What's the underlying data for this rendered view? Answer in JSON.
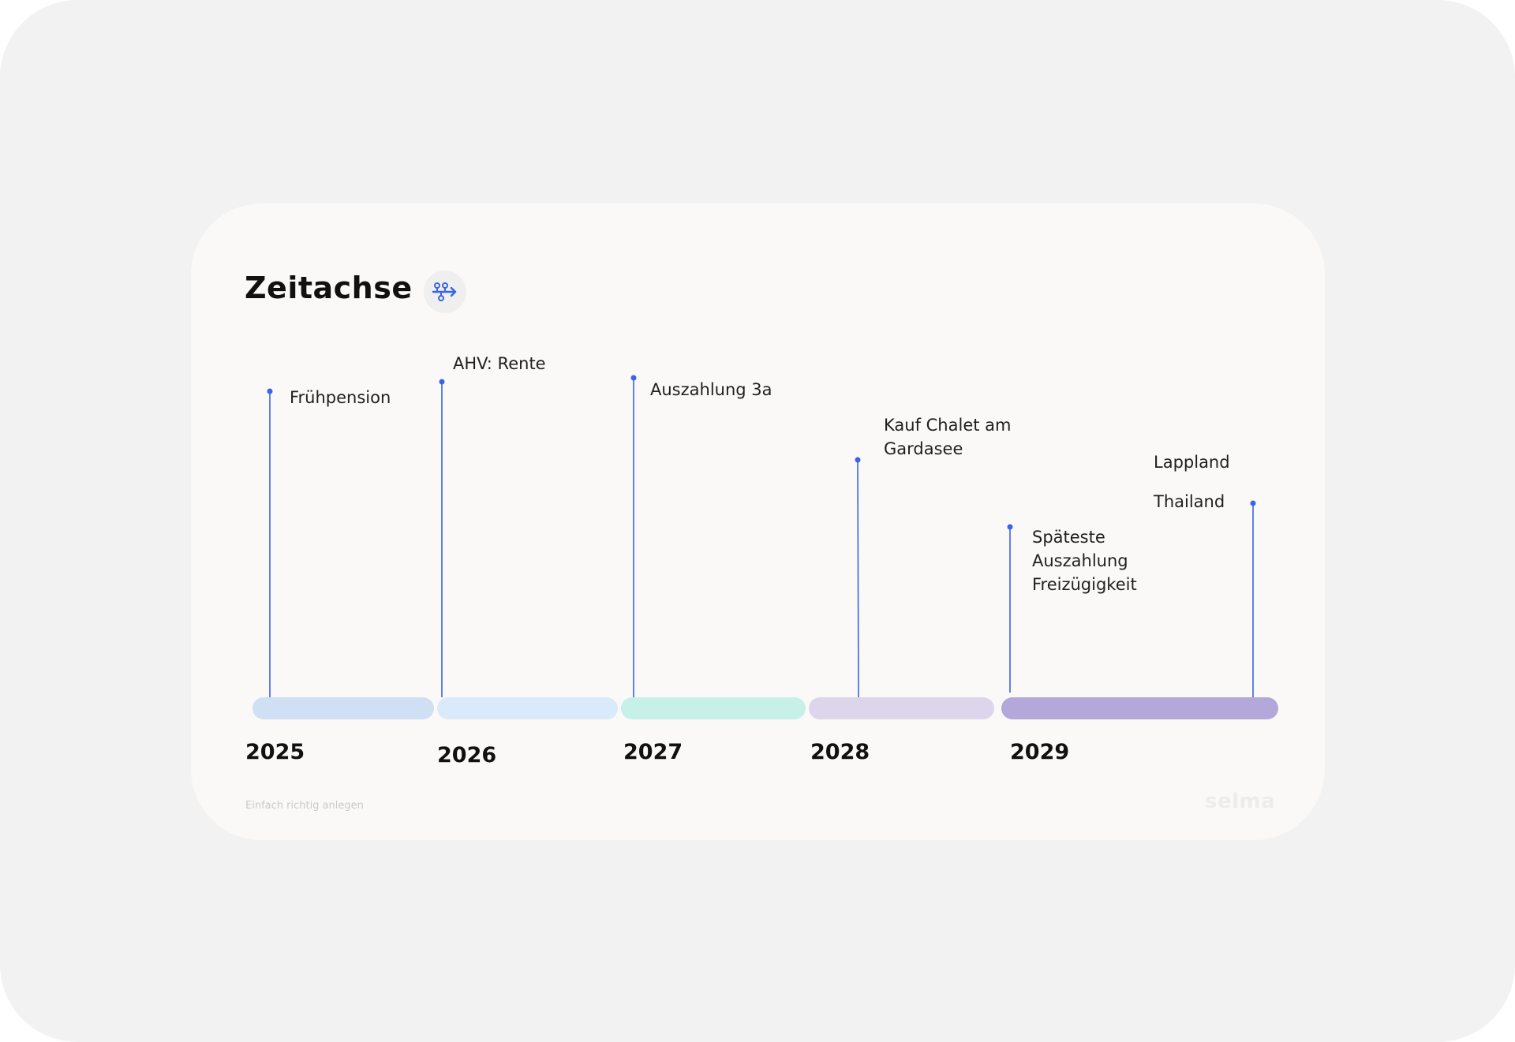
{
  "title": "Zeitachse",
  "title_icon": "flow-arrow-icon",
  "colors": {
    "frame_bg": "#f2f2f2",
    "card_bg": "#faf9f8",
    "marker": "#3b63e8",
    "bands": [
      "#cfe0f5",
      "#d9eafb",
      "#c7f0e9",
      "#ddd5ec",
      "#b3a8d9"
    ]
  },
  "years": [
    "2025",
    "2026",
    "2027",
    "2028",
    "2029"
  ],
  "events": [
    {
      "label": "Frühpension",
      "year": "2025"
    },
    {
      "label": "AHV: Rente",
      "year": "2026"
    },
    {
      "label": "Auszahlung 3a",
      "year": "2027"
    },
    {
      "label": "Kauf Chalet am\nGardasee",
      "year": "2028"
    },
    {
      "label": "Späteste\nAuszahlung\nFreizügigkeit",
      "year": "2029"
    },
    {
      "label": "Lappland",
      "year": "2029"
    },
    {
      "label": "Thailand",
      "year": "2029"
    }
  ],
  "footer": {
    "tagline": "Einfach richtig anlegen",
    "brand": "selma"
  }
}
